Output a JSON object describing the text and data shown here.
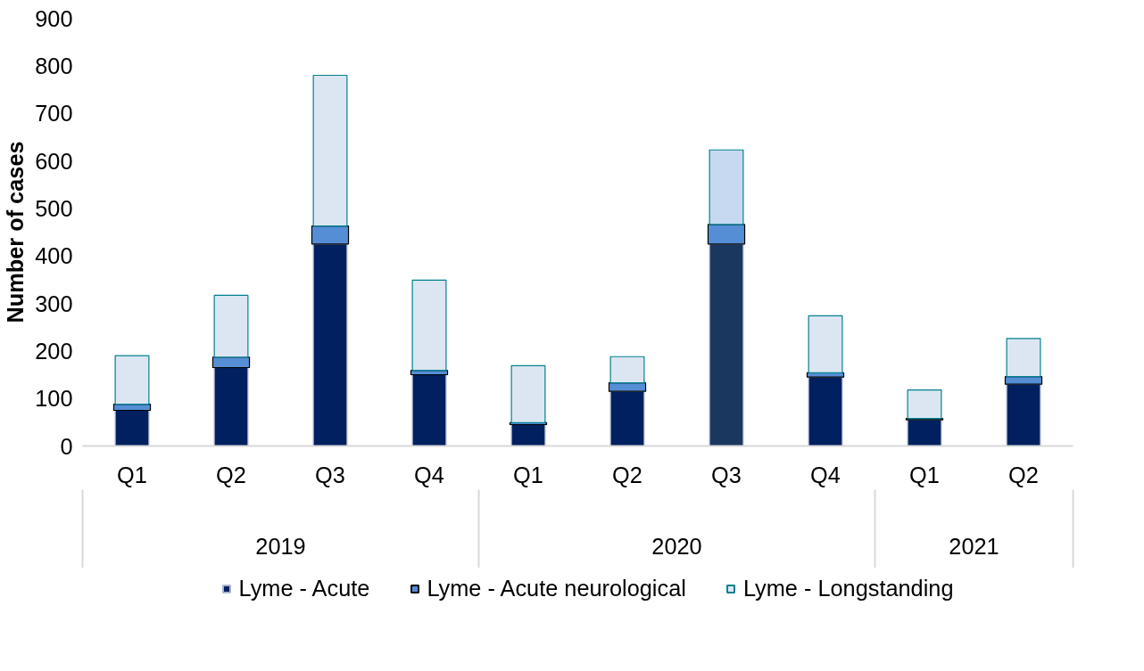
{
  "chart_data": {
    "type": "bar",
    "stacked": true,
    "ylabel": "Number of cases",
    "categories": [
      "Q1",
      "Q2",
      "Q3",
      "Q4",
      "Q1",
      "Q2",
      "Q3",
      "Q4",
      "Q1",
      "Q2"
    ],
    "annotations": [
      "2019",
      "2020",
      "2021"
    ],
    "series": [
      {
        "name": "Lyme - Acute",
        "color": "#002060",
        "colors": [
          null,
          null,
          null,
          null,
          null,
          null,
          "#1a3760",
          null,
          null,
          null
        ],
        "values": [
          75,
          165,
          425,
          150,
          45,
          115,
          425,
          145,
          55,
          130
        ]
      },
      {
        "name": "Lyme - Acute neurological",
        "color": "#558ed5",
        "values": [
          13,
          22,
          38,
          9,
          4,
          18,
          41,
          9,
          3,
          16
        ]
      },
      {
        "name": "Lyme - Longstanding",
        "color": "#dce6f2",
        "colors": [
          null,
          null,
          null,
          null,
          null,
          null,
          "#c6d9f1",
          null,
          null,
          null
        ],
        "values": [
          102,
          130,
          317,
          190,
          120,
          55,
          157,
          120,
          60,
          80
        ]
      }
    ],
    "ylim": [
      0,
      900
    ],
    "yticks": [
      0,
      100,
      200,
      300,
      400,
      500,
      600,
      700,
      800,
      900
    ],
    "grid": false,
    "legend": "bottom"
  }
}
